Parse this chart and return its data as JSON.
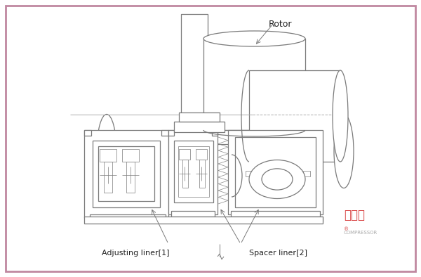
{
  "bg_color": "#f0e8ed",
  "border_color": "#c088a0",
  "drawing_color": "#7a7a7a",
  "lw": 0.9,
  "tlw": 0.5,
  "label_rotor": "Rotor",
  "label_adj": "Adjusting liner[1]",
  "label_spacer": "Spacer liner[2]",
  "watermark_cn": "压缩机",
  "watermark_en": "COMPRESSOR",
  "watermark_color": "#d84040",
  "watermark_color2": "#aaaaaa",
  "fig_width": 6.0,
  "fig_height": 3.94
}
